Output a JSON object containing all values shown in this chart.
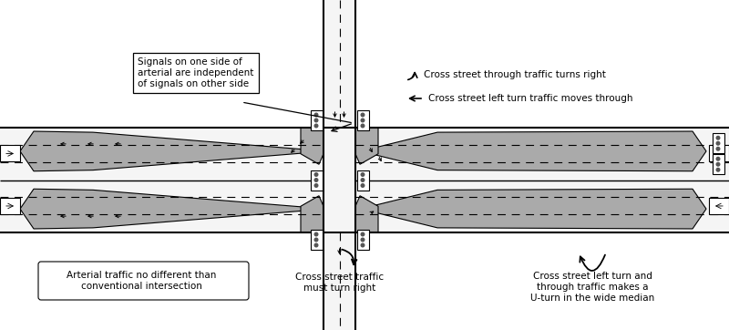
{
  "bg_color": "#ffffff",
  "road_fill": "#f5f5f5",
  "median_fill": "#aaaaaa",
  "border_color": "#000000",
  "figsize": [
    8.0,
    3.62
  ],
  "dpi": 100,
  "annotation_box_text": "Signals on one side of\narterial are independent\nof signals on other side",
  "label_arterial": "Arterial traffic no different than\nconventional intersection",
  "label_right_turn": "Cross street traffic\nmust turn right",
  "label_uturn": "Cross street left turn and\nthrough traffic makes a\nU-turn in the wide median",
  "label_top1": "Cross street through traffic turns right",
  "label_top2": "Cross street left turn traffic moves through"
}
